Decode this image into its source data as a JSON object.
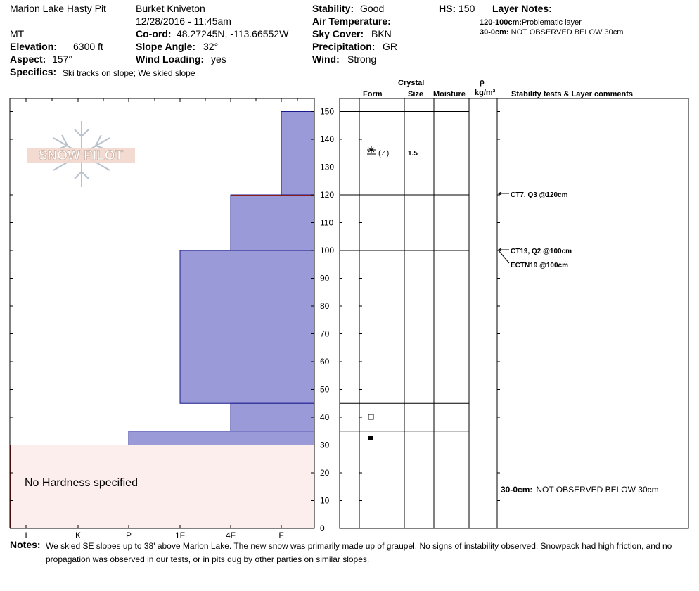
{
  "header": {
    "pit_name": "Marion Lake Hasty Pit",
    "observer": "Burket Kniveton",
    "datetime": "12/28/2016 - 11:45am",
    "state": "MT",
    "elevation_label": "Elevation:",
    "elevation": "6300 ft",
    "aspect_label": "Aspect:",
    "aspect": "157°",
    "specifics_label": "Specifics:",
    "specifics": "Ski tracks on slope; We skied slope",
    "coord_label": "Co-ord:",
    "coord": "48.27245N, -113.66552W",
    "slope_label": "Slope Angle:",
    "slope": "32°",
    "wind_loading_label": "Wind Loading:",
    "wind_loading": "yes",
    "stability_label": "Stability:",
    "stability": "Good",
    "air_temp_label": "Air Temperature:",
    "sky_label": "Sky Cover:",
    "sky": "BKN",
    "precip_label": "Precipitation:",
    "precip": "GR",
    "wind_label": "Wind:",
    "wind": "Strong",
    "hs_label": "HS:",
    "hs": "150",
    "layer_notes_label": "Layer Notes:",
    "layer_notes": [
      {
        "range": "120-100cm:",
        "text": "Problematic layer"
      },
      {
        "range": "30-0cm:",
        "text": "NOT OBSERVED BELOW 30cm"
      }
    ]
  },
  "columns": {
    "crystal": "Crystal",
    "form": "Form",
    "size": "Size",
    "moisture": "Moisture",
    "rho": "ρ",
    "density_unit": "kg/m³",
    "stability": "Stability tests & Layer comments"
  },
  "logo_text": "SNOW PILOT",
  "no_hardness": "No Hardness specified",
  "notes_label": "Notes:",
  "notes_line1": "We skied SE slopes up to 38' above Marion Lake. The new snow was primarily made up of graupel. No signs of instability observed. Snowpack had high friction, and no",
  "notes_line2": "propagation was observed in our tests, or in pits dug by other parties on similar slopes.",
  "chart_data": {
    "type": "snow_profile",
    "y_axis": {
      "label": "",
      "unit": "cm",
      "range": [
        0,
        150
      ],
      "ticks": [
        0,
        10,
        20,
        30,
        40,
        50,
        60,
        70,
        80,
        90,
        100,
        110,
        120,
        130,
        140,
        150
      ]
    },
    "x_axis": {
      "hardness_labels": [
        "I",
        "K",
        "P",
        "1F",
        "4F",
        "F"
      ]
    },
    "hardness_layers": [
      {
        "top": 150,
        "bottom": 120,
        "hardness": "F"
      },
      {
        "top": 120,
        "bottom": 100,
        "hardness": "4F"
      },
      {
        "top": 100,
        "bottom": 45,
        "hardness": "1F"
      },
      {
        "top": 45,
        "bottom": 35,
        "hardness": "4F"
      },
      {
        "top": 35,
        "bottom": 30,
        "hardness": "P"
      }
    ],
    "not_observed": {
      "top": 30,
      "bottom": 0
    },
    "layer_boundaries": [
      150,
      120,
      100,
      45,
      35,
      30
    ],
    "crystals": [
      {
        "height": 135,
        "form": "graupel (precipitation particle)",
        "size": "1.5"
      },
      {
        "height": 40,
        "form": "faceted (square)"
      },
      {
        "height": 32,
        "form": "filled square"
      }
    ],
    "stability_tests": [
      {
        "height": 120,
        "text": "CT7, Q3 @120cm"
      },
      {
        "height": 100,
        "text": "CT19, Q2 @100cm"
      },
      {
        "height": 100,
        "text": "ECTN19 @100cm"
      }
    ],
    "layer_comments": [
      {
        "range": "30-0cm:",
        "text": "NOT OBSERVED BELOW 30cm"
      }
    ],
    "colors": {
      "fill": "#9a9ad8",
      "border": "#1a1a8c",
      "problem_line": "#8b1a1a",
      "not_observed_fill": "#fdeeee"
    }
  }
}
